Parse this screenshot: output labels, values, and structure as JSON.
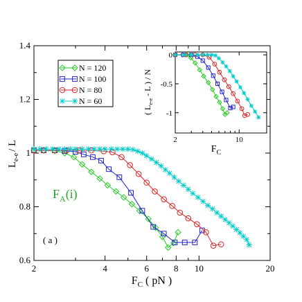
{
  "chart_data": [
    {
      "type": "line",
      "xlabel_main": "F",
      "xlabel_sub": "C",
      "xlabel_unit": "( pN )",
      "ylabel_main": "L",
      "ylabel_sub": "e-e",
      "ylabel_tail": "/ L",
      "xscale": "log",
      "xlim": [
        2,
        20
      ],
      "ylim": [
        0.6,
        1.4
      ],
      "xticks": [
        2,
        4,
        6,
        8,
        10,
        20
      ],
      "yticks": [
        0.6,
        0.8,
        1,
        1.2,
        1.4
      ],
      "xtick_labels": [
        "2",
        "4",
        "6",
        "8",
        "10",
        "20"
      ],
      "ytick_labels": [
        "0.6",
        "0.8",
        "1",
        "1.2",
        "1.4"
      ],
      "legend_position": "top-left",
      "panel_label": "( a )",
      "annotation": {
        "main": "F",
        "sub": "A",
        "tail": "(i)",
        "color": "#22aa22"
      },
      "series": [
        {
          "name": "N = 120",
          "color": "#22cc22",
          "marker": "diamond",
          "x": [
            2.0,
            2.2,
            2.45,
            2.7,
            2.95,
            3.2,
            3.5,
            3.8,
            4.1,
            4.45,
            4.8,
            5.2,
            5.6,
            6.1,
            6.55,
            7.0,
            7.4,
            7.8,
            8.15
          ],
          "y": [
            1.01,
            1.01,
            1.008,
            1.0,
            0.985,
            0.958,
            0.93,
            0.905,
            0.88,
            0.857,
            0.835,
            0.81,
            0.785,
            0.755,
            0.722,
            0.688,
            0.648,
            0.665,
            0.705
          ]
        },
        {
          "name": "N = 100",
          "color": "#2222cc",
          "marker": "square",
          "x": [
            2.0,
            2.2,
            2.45,
            2.7,
            3.0,
            3.25,
            3.55,
            3.85,
            4.15,
            4.6,
            5.15,
            5.75,
            6.4,
            7.1,
            7.9,
            8.7,
            9.6,
            10.3
          ],
          "y": [
            1.01,
            1.01,
            1.01,
            1.008,
            1.005,
            0.995,
            0.985,
            0.972,
            0.94,
            0.91,
            0.852,
            0.785,
            0.725,
            0.7,
            0.667,
            0.667,
            0.667,
            0.712
          ]
        },
        {
          "name": "N = 80",
          "color": "#dd2222",
          "marker": "circle",
          "x": [
            2.0,
            2.2,
            2.45,
            2.75,
            3.1,
            3.5,
            3.95,
            4.3,
            4.7,
            5.1,
            5.55,
            6.0,
            6.5,
            7.1,
            7.7,
            8.3,
            9.0,
            9.8,
            10.7,
            11.5,
            12.4
          ],
          "y": [
            1.01,
            1.01,
            1.01,
            1.01,
            1.01,
            1.01,
            1.007,
            1.003,
            0.985,
            0.955,
            0.922,
            0.89,
            0.857,
            0.828,
            0.803,
            0.778,
            0.757,
            0.735,
            0.705,
            0.655,
            0.66
          ]
        },
        {
          "name": "N = 60",
          "color": "#00cccc",
          "marker": "star",
          "x": [
            2.0,
            2.12,
            2.25,
            2.4,
            2.55,
            2.7,
            2.85,
            3.0,
            3.2,
            3.4,
            3.6,
            3.8,
            4.0,
            4.25,
            4.5,
            4.75,
            5.0,
            5.25,
            5.5,
            5.75,
            6.0,
            6.3,
            6.6,
            6.9,
            7.2,
            7.5,
            7.85,
            8.2,
            8.6,
            9.0,
            9.4,
            9.9,
            10.4,
            10.9,
            11.4,
            11.9,
            12.4,
            12.9,
            13.4,
            13.9,
            14.4,
            14.9,
            15.4,
            15.9,
            16.3
          ],
          "y": [
            1.015,
            1.015,
            1.015,
            1.015,
            1.015,
            1.015,
            1.015,
            1.015,
            1.015,
            1.015,
            1.015,
            1.015,
            1.015,
            1.015,
            1.015,
            1.015,
            1.015,
            1.013,
            1.007,
            1.0,
            0.99,
            0.978,
            0.965,
            0.952,
            0.938,
            0.925,
            0.91,
            0.895,
            0.88,
            0.865,
            0.85,
            0.835,
            0.82,
            0.805,
            0.792,
            0.778,
            0.765,
            0.752,
            0.74,
            0.728,
            0.715,
            0.703,
            0.69,
            0.678,
            0.658
          ]
        }
      ]
    },
    {
      "type": "line",
      "inset": true,
      "xlabel_main": "F",
      "xlabel_sub": "C",
      "ylabel_text": "( L",
      "ylabel_sub": "e-e",
      "ylabel_tail": "- L ) / N",
      "xscale": "log",
      "xlim": [
        2,
        20
      ],
      "ylim": [
        -1.35,
        0.05
      ],
      "xtick_labels": [
        "2",
        "10"
      ],
      "ytick_labels": [
        "0",
        "-0.5",
        "-1"
      ],
      "series": [
        {
          "name": "N = 120",
          "color": "#22cc22",
          "marker": "diamond",
          "x": [
            2.0,
            2.4,
            2.7,
            2.95,
            3.3,
            3.7,
            4.1,
            4.6,
            5.1,
            5.6,
            6.1,
            6.6,
            7.0,
            7.4
          ],
          "y": [
            0.0,
            0.0,
            0.0,
            -0.05,
            -0.14,
            -0.26,
            -0.37,
            -0.48,
            -0.6,
            -0.72,
            -0.82,
            -0.93,
            -1.03,
            -1.0
          ]
        },
        {
          "name": "N = 100",
          "color": "#2222cc",
          "marker": "square",
          "x": [
            2.0,
            2.45,
            3.0,
            3.5,
            4.0,
            4.6,
            5.2,
            5.8,
            6.5,
            7.2,
            8.0,
            8.6
          ],
          "y": [
            0.0,
            0.0,
            0.0,
            -0.03,
            -0.1,
            -0.22,
            -0.36,
            -0.5,
            -0.64,
            -0.78,
            -0.92,
            -0.9
          ]
        },
        {
          "name": "N = 80",
          "color": "#dd2222",
          "marker": "circle",
          "x": [
            2.0,
            2.6,
            3.3,
            4.0,
            4.7,
            5.4,
            6.1,
            6.9,
            7.7,
            8.6,
            9.6,
            10.7,
            11.5,
            12.4
          ],
          "y": [
            0.0,
            0.0,
            0.0,
            0.0,
            -0.04,
            -0.16,
            -0.3,
            -0.43,
            -0.55,
            -0.67,
            -0.8,
            -0.93,
            -1.05,
            -1.03
          ]
        },
        {
          "name": "N = 60",
          "color": "#00cccc",
          "marker": "star",
          "x": [
            2.0,
            2.5,
            3.0,
            3.5,
            4.0,
            4.5,
            5.0,
            5.5,
            6.0,
            6.6,
            7.2,
            7.9,
            8.6,
            9.4,
            10.3,
            11.3,
            12.4,
            13.6,
            14.9,
            16.3
          ],
          "y": [
            0.0,
            0.0,
            0.0,
            0.0,
            0.0,
            0.0,
            0.0,
            -0.01,
            -0.06,
            -0.13,
            -0.2,
            -0.28,
            -0.37,
            -0.46,
            -0.56,
            -0.66,
            -0.77,
            -0.88,
            -0.98,
            -1.08
          ]
        }
      ]
    }
  ]
}
